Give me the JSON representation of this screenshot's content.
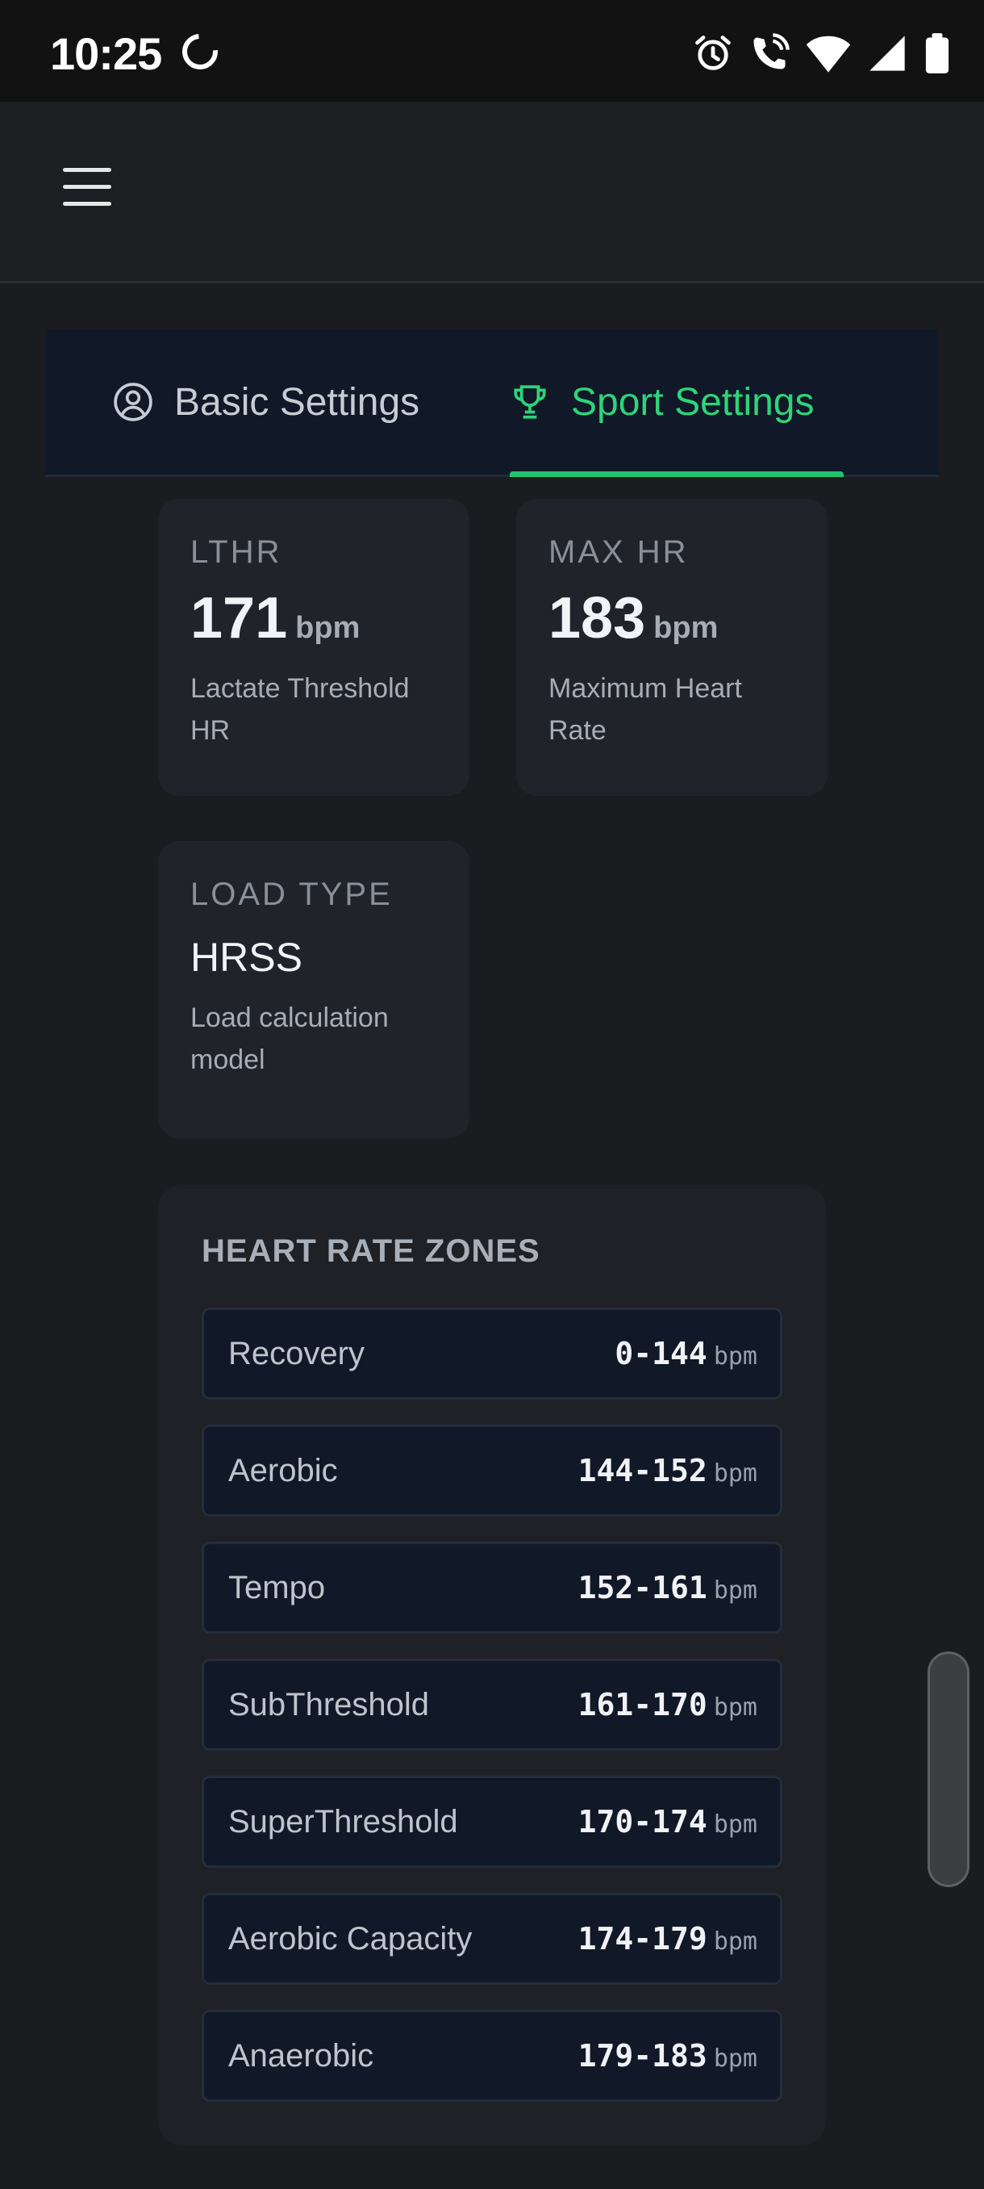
{
  "status_bar": {
    "time": "10:25",
    "icons": [
      "loading-spinner-icon",
      "alarm-icon",
      "wifi-calling-icon",
      "wifi-icon",
      "signal-icon",
      "battery-icon"
    ]
  },
  "app_bar": {
    "menu_icon": "hamburger-menu-icon"
  },
  "tabs": [
    {
      "label": "Basic Settings",
      "icon": "user-circle-icon",
      "active": false
    },
    {
      "label": "Sport Settings",
      "icon": "trophy-icon",
      "active": true
    }
  ],
  "cards": {
    "lthr": {
      "label": "LTHR",
      "value": "171",
      "unit": "bpm",
      "description": "Lactate Threshold HR"
    },
    "max_hr": {
      "label": "MAX HR",
      "value": "183",
      "unit": "bpm",
      "description": "Maximum Heart Rate"
    },
    "load_type": {
      "label": "LOAD TYPE",
      "value": "HRSS",
      "description": "Load calculation model"
    }
  },
  "zones": {
    "title": "HEART RATE ZONES",
    "unit": "bpm",
    "items": [
      {
        "name": "Recovery",
        "range": "0-144"
      },
      {
        "name": "Aerobic",
        "range": "144-152"
      },
      {
        "name": "Tempo",
        "range": "152-161"
      },
      {
        "name": "SubThreshold",
        "range": "161-170"
      },
      {
        "name": "SuperThreshold",
        "range": "170-174"
      },
      {
        "name": "Aerobic Capacity",
        "range": "174-179"
      },
      {
        "name": "Anaerobic",
        "range": "179-183"
      }
    ]
  },
  "colors": {
    "accent": "#22c56e",
    "background": "#1b1c1f",
    "card": "#20232a",
    "zone_row": "#111827"
  }
}
